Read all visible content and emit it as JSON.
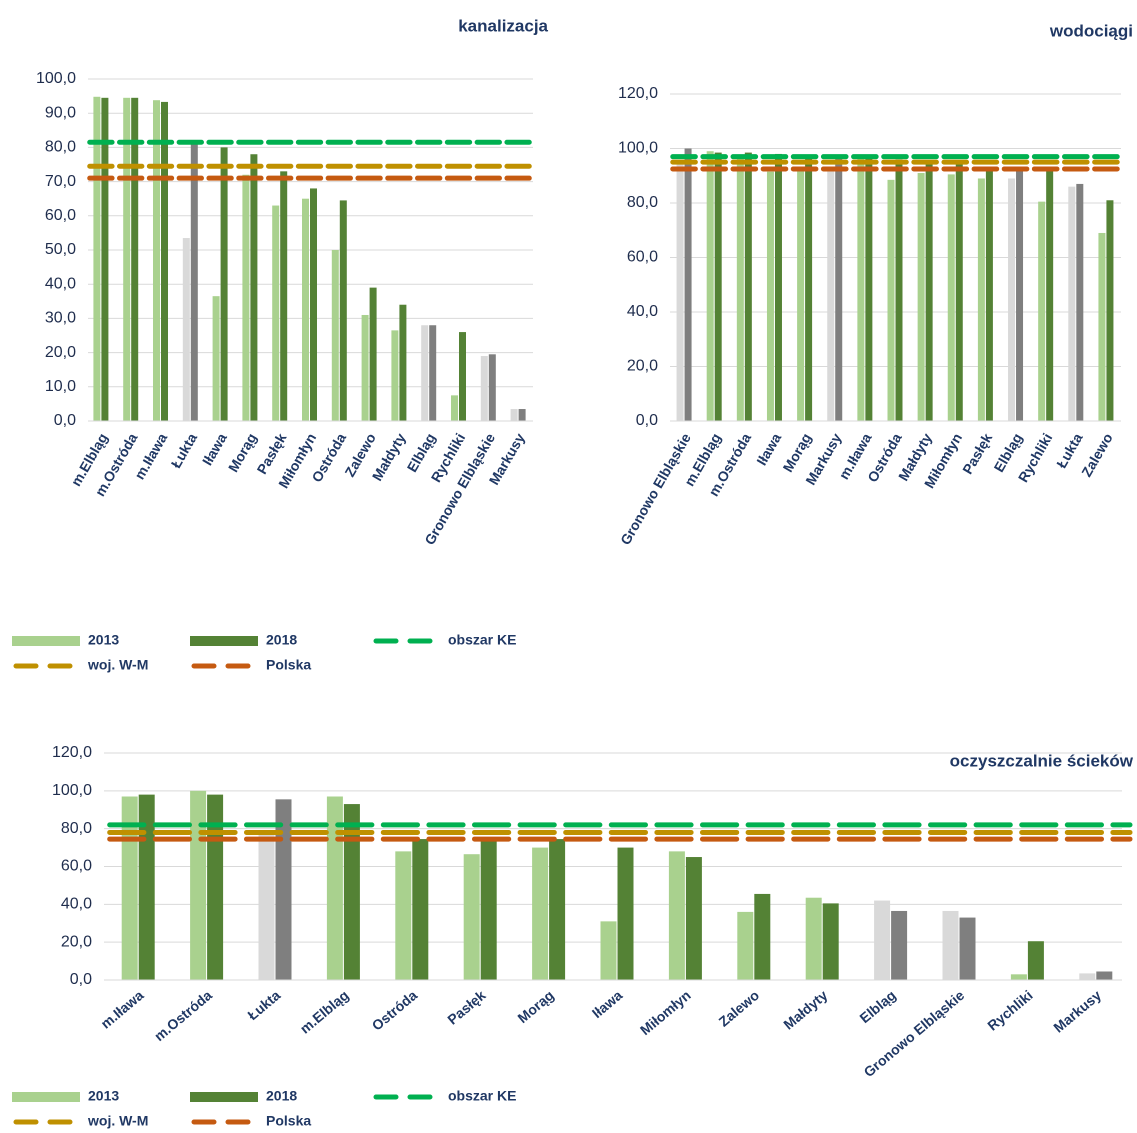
{
  "chart_data": [
    {
      "type": "bar",
      "title": "kanalizacja",
      "categories": [
        "m.Elbląg",
        "m.Ostróda",
        "m.Iława",
        "Łukta",
        "Iława",
        "Morąg",
        "Pasłęk",
        "Miłomłyn",
        "Ostróda",
        "Zalewo",
        "Małdyty",
        "Elbląg",
        "Rychliki",
        "Gronowo Elbląskie",
        "Markusy"
      ],
      "series": [
        {
          "name": "2013",
          "color": "#a9d18e",
          "values": [
            94.8,
            94.5,
            93.8,
            53.5,
            36.5,
            72,
            63,
            65,
            50,
            31,
            26.5,
            28,
            7.5,
            19,
            3.5
          ],
          "colors": [
            "#a9d18e",
            "#a9d18e",
            "#a9d18e",
            "#d9d9d9",
            "#a9d18e",
            "#a9d18e",
            "#a9d18e",
            "#a9d18e",
            "#a9d18e",
            "#a9d18e",
            "#a9d18e",
            "#d9d9d9",
            "#a9d18e",
            "#d9d9d9",
            "#d9d9d9"
          ]
        },
        {
          "name": "2018",
          "color": "#548235",
          "values": [
            94.5,
            94.5,
            93.3,
            81,
            80,
            78,
            73,
            68,
            64.5,
            39,
            34,
            28,
            26,
            19.5,
            3.5
          ],
          "colors": [
            "#548235",
            "#548235",
            "#548235",
            "#7f7f7f",
            "#548235",
            "#548235",
            "#548235",
            "#548235",
            "#548235",
            "#548235",
            "#548235",
            "#7f7f7f",
            "#548235",
            "#7f7f7f",
            "#7f7f7f"
          ]
        }
      ],
      "reference_lines": [
        {
          "name": "obszar KE",
          "color": "#00b050",
          "value": 81.5
        },
        {
          "name": "woj. W-M",
          "color": "#bf9000",
          "value": 74.5
        },
        {
          "name": "Polska",
          "color": "#c55a11",
          "value": 71
        }
      ],
      "ylim": [
        0,
        100
      ],
      "yticks": [
        {
          "value": 0,
          "label": "0,0"
        },
        {
          "value": 10,
          "label": "10,0"
        },
        {
          "value": 20,
          "label": "20,0"
        },
        {
          "value": 30,
          "label": "30,0"
        },
        {
          "value": 40,
          "label": "40,0"
        },
        {
          "value": 50,
          "label": "50,0"
        },
        {
          "value": 60,
          "label": "60,0"
        },
        {
          "value": 70,
          "label": "70,0"
        },
        {
          "value": 80,
          "label": "80,0"
        },
        {
          "value": 90,
          "label": "90,0"
        },
        {
          "value": 100,
          "label": "100,0"
        }
      ],
      "grid": true,
      "legend": "bottom"
    },
    {
      "type": "bar",
      "title": "wodociągi",
      "categories": [
        "Gronowo Elbląskie",
        "m.Elbląg",
        "m.Ostróda",
        "Iława",
        "Morąg",
        "Markusy",
        "m.Iława",
        "Ostróda",
        "Małdyty",
        "Miłomłyn",
        "Pasłęk",
        "Elbląg",
        "Rychliki",
        "Łukta",
        "Zalewo"
      ],
      "series": [
        {
          "color": "#a9d18e",
          "values": [
            95,
            99,
            97,
            91.5,
            92,
            93,
            96.5,
            88.5,
            91,
            90.5,
            89,
            89,
            80.5,
            86,
            69
          ],
          "colors": [
            "#d9d9d9",
            "#a9d18e",
            "#a9d18e",
            "#a9d18e",
            "#a9d18e",
            "#d9d9d9",
            "#a9d18e",
            "#a9d18e",
            "#a9d18e",
            "#a9d18e",
            "#a9d18e",
            "#d9d9d9",
            "#a9d18e",
            "#d9d9d9",
            "#a9d18e"
          ]
        },
        {
          "color": "#548235",
          "values": [
            100,
            98.5,
            98.5,
            98,
            97,
            97,
            97,
            96,
            95,
            94.5,
            93,
            92.5,
            92,
            87,
            81
          ],
          "colors": [
            "#7f7f7f",
            "#548235",
            "#548235",
            "#548235",
            "#548235",
            "#7f7f7f",
            "#548235",
            "#548235",
            "#548235",
            "#548235",
            "#548235",
            "#7f7f7f",
            "#548235",
            "#7f7f7f",
            "#548235"
          ]
        }
      ],
      "reference_lines": [
        {
          "color": "#00b050",
          "value": 97
        },
        {
          "color": "#bf9000",
          "value": 95
        },
        {
          "color": "#c55a11",
          "value": 92.5
        }
      ],
      "ylim": [
        0,
        120
      ],
      "yticks": [
        {
          "value": 0,
          "label": "0,0"
        },
        {
          "value": 20,
          "label": "20,0"
        },
        {
          "value": 40,
          "label": "40,0"
        },
        {
          "value": 60,
          "label": "60,0"
        },
        {
          "value": 80,
          "label": "80,0"
        },
        {
          "value": 100,
          "label": "100,0"
        },
        {
          "value": 120,
          "label": "120,0"
        }
      ],
      "grid": true
    },
    {
      "type": "bar",
      "title": "oczyszczalnie ścieków",
      "categories": [
        "m.Iława",
        "m.Ostróda",
        "Łukta",
        "m.Elbląg",
        "Ostróda",
        "Pasłęk",
        "Morąg",
        "Iława",
        "Miłomłyn",
        "Zalewo",
        "Małdyty",
        "Elbląg",
        "Gronowo Elbląskie",
        "Rychliki",
        "Markusy"
      ],
      "series": [
        {
          "name": "2013",
          "color": "#a9d18e",
          "values": [
            97,
            100,
            78.5,
            97,
            68,
            66.5,
            70,
            31,
            68,
            36,
            43.5,
            42,
            36.5,
            3,
            3.5
          ],
          "colors": [
            "#a9d18e",
            "#a9d18e",
            "#d9d9d9",
            "#a9d18e",
            "#a9d18e",
            "#a9d18e",
            "#a9d18e",
            "#a9d18e",
            "#a9d18e",
            "#a9d18e",
            "#a9d18e",
            "#d9d9d9",
            "#d9d9d9",
            "#a9d18e",
            "#d9d9d9"
          ]
        },
        {
          "name": "2018",
          "color": "#548235",
          "values": [
            98,
            98,
            95.5,
            93,
            74.5,
            74,
            74.5,
            70,
            65,
            45.5,
            40.5,
            36.5,
            33,
            20.5,
            4.5
          ],
          "colors": [
            "#548235",
            "#548235",
            "#7f7f7f",
            "#548235",
            "#548235",
            "#548235",
            "#548235",
            "#548235",
            "#548235",
            "#548235",
            "#548235",
            "#7f7f7f",
            "#7f7f7f",
            "#548235",
            "#7f7f7f"
          ]
        }
      ],
      "reference_lines": [
        {
          "name": "obszar KE",
          "color": "#00b050",
          "value": 82
        },
        {
          "name": "woj. W-M",
          "color": "#bf9000",
          "value": 78
        },
        {
          "name": "Polska",
          "color": "#c55a11",
          "value": 74.5
        }
      ],
      "ylim": [
        0,
        120
      ],
      "yticks": [
        {
          "value": 0,
          "label": "0,0"
        },
        {
          "value": 20,
          "label": "20,0"
        },
        {
          "value": 40,
          "label": "40,0"
        },
        {
          "value": 60,
          "label": "60,0"
        },
        {
          "value": 80,
          "label": "80,0"
        },
        {
          "value": 100,
          "label": "100,0"
        },
        {
          "value": 120,
          "label": "120,0"
        }
      ],
      "grid": true,
      "legend": "bottom"
    }
  ]
}
